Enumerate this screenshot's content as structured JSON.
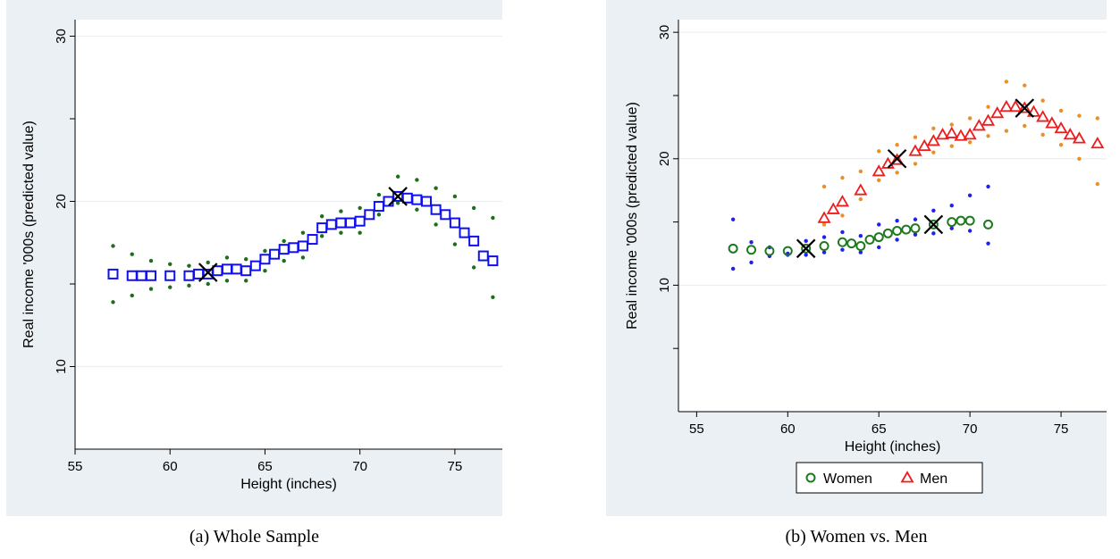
{
  "figure": {
    "caption_a": "(a) Whole Sample",
    "caption_b": "(b) Women vs. Men"
  },
  "colors": {
    "panel_bg": "#eaf0f3",
    "plot_bg": "#ffffff",
    "grid": "#eaf0f3",
    "whole_fit": "#1010ee",
    "whole_ci": "#1e6e1e",
    "women_fit": "#1e7a1e",
    "women_ci": "#1f1fee",
    "men_fit": "#ee1c1c",
    "men_ci": "#e8902a",
    "cross": "#000000"
  },
  "chart_data": [
    {
      "type": "scatter",
      "xlabel": "Height (inches)",
      "ylabel": "Real income '000s (predicted value)",
      "xlim": [
        55,
        77.5
      ],
      "ylim": [
        5,
        31
      ],
      "xticks": [
        55,
        60,
        65,
        70,
        75
      ],
      "yticks": [
        10,
        20,
        30
      ],
      "y_minor_ticks": [
        15,
        25
      ],
      "grid": true,
      "legend": null,
      "series": [
        {
          "marker": "square",
          "color": "#1010ee",
          "x": [
            57,
            58,
            58.5,
            59,
            60,
            61,
            61.5,
            62,
            62.5,
            63,
            63.5,
            64,
            64.5,
            65,
            65.5,
            66,
            66.5,
            67,
            67.5,
            68,
            68.5,
            69,
            69.5,
            70,
            70.5,
            71,
            71.5,
            72,
            72.5,
            73,
            73.5,
            74,
            74.5,
            75,
            75.5,
            76,
            76.5,
            77
          ],
          "y": [
            15.6,
            15.5,
            15.5,
            15.5,
            15.5,
            15.5,
            15.6,
            15.6,
            15.8,
            15.9,
            15.9,
            15.8,
            16.1,
            16.5,
            16.8,
            17.1,
            17.2,
            17.3,
            17.7,
            18.4,
            18.6,
            18.7,
            18.7,
            18.8,
            19.2,
            19.7,
            20.0,
            20.3,
            20.2,
            20.1,
            20.0,
            19.5,
            19.2,
            18.7,
            18.1,
            17.6,
            16.7,
            16.4
          ]
        },
        {
          "marker": "dot",
          "color": "#1e6e1e",
          "x": [
            57,
            58,
            59,
            60,
            61,
            62,
            63,
            64,
            65,
            66,
            67,
            68,
            69,
            70,
            71,
            72,
            73,
            74,
            75,
            76,
            77
          ],
          "y": [
            17.3,
            16.8,
            16.4,
            16.2,
            16.1,
            16.3,
            16.6,
            16.5,
            17.0,
            17.6,
            18.1,
            19.1,
            19.4,
            19.6,
            20.4,
            21.5,
            21.3,
            20.8,
            20.3,
            19.6,
            19.0
          ]
        },
        {
          "marker": "dot",
          "color": "#1e6e1e",
          "x": [
            57,
            58,
            59,
            60,
            61,
            62,
            63,
            64,
            65,
            66,
            67,
            68,
            69,
            70,
            71,
            72,
            73,
            74,
            75,
            76,
            77
          ],
          "y": [
            13.9,
            14.3,
            14.7,
            14.8,
            14.9,
            15.0,
            15.2,
            15.2,
            15.8,
            16.4,
            16.6,
            17.9,
            18.1,
            18.1,
            19.2,
            19.9,
            19.5,
            18.6,
            17.4,
            16.0,
            14.2
          ]
        }
      ],
      "markers": [
        {
          "type": "cross",
          "x": 62,
          "y": 15.7
        },
        {
          "type": "cross",
          "x": 72,
          "y": 20.3
        }
      ]
    },
    {
      "type": "scatter",
      "xlabel": "Height (inches)",
      "ylabel": "Real income '000s (predicted value)",
      "xlim": [
        54,
        77.5
      ],
      "ylim": [
        0,
        31
      ],
      "xticks": [
        55,
        60,
        65,
        70,
        75
      ],
      "yticks": [
        10,
        20,
        30
      ],
      "y_minor_ticks": [
        5,
        15,
        25
      ],
      "grid": true,
      "legend": "bottom",
      "series": [
        {
          "name": "Women",
          "marker": "circle",
          "color": "#1e7a1e",
          "x": [
            57,
            58,
            59,
            60,
            61,
            62,
            63,
            63.5,
            64,
            64.5,
            65,
            65.5,
            66,
            66.5,
            67,
            68,
            69,
            69.5,
            70,
            71
          ],
          "y": [
            12.9,
            12.8,
            12.7,
            12.7,
            12.9,
            13.1,
            13.4,
            13.3,
            13.1,
            13.6,
            13.8,
            14.1,
            14.3,
            14.4,
            14.5,
            14.8,
            15.0,
            15.1,
            15.1,
            14.8
          ]
        },
        {
          "name": "Men",
          "marker": "triangle",
          "color": "#ee1c1c",
          "x": [
            62,
            62.5,
            63,
            64,
            65,
            65.5,
            66,
            67,
            67.5,
            68,
            68.5,
            69,
            69.5,
            70,
            70.5,
            71,
            71.5,
            72,
            72.5,
            73,
            73.5,
            74,
            74.5,
            75,
            75.5,
            76,
            77
          ],
          "y": [
            15.3,
            16.0,
            16.6,
            17.5,
            19.0,
            19.6,
            19.9,
            20.6,
            21.0,
            21.4,
            21.9,
            22.0,
            21.8,
            21.9,
            22.6,
            23.0,
            23.6,
            24.1,
            24.1,
            24.0,
            23.7,
            23.3,
            22.8,
            22.4,
            21.9,
            21.6,
            21.2
          ]
        },
        {
          "marker": "dot",
          "color": "#1f1fee",
          "x": [
            57,
            58,
            59,
            60,
            61,
            62,
            63,
            64,
            65,
            66,
            67,
            68,
            69,
            70,
            71
          ],
          "y": [
            15.2,
            13.4,
            13.0,
            12.5,
            13.5,
            13.8,
            14.2,
            13.9,
            14.8,
            15.1,
            15.2,
            15.9,
            16.3,
            17.1,
            17.8
          ]
        },
        {
          "marker": "dot",
          "color": "#1f1fee",
          "x": [
            57,
            58,
            59,
            60,
            61,
            62,
            63,
            64,
            65,
            66,
            67,
            68,
            69,
            70,
            71
          ],
          "y": [
            11.3,
            11.8,
            12.3,
            12.4,
            12.4,
            12.6,
            12.8,
            12.6,
            13.0,
            13.6,
            14.0,
            14.1,
            14.5,
            14.3,
            13.3
          ]
        },
        {
          "marker": "dot",
          "color": "#e8902a",
          "x": [
            62,
            63,
            64,
            65,
            66,
            67,
            68,
            69,
            70,
            71,
            72,
            73,
            74,
            75,
            76,
            77
          ],
          "y": [
            17.8,
            18.5,
            19.0,
            20.6,
            21.1,
            21.7,
            22.4,
            22.7,
            23.2,
            24.1,
            26.1,
            25.8,
            24.6,
            23.8,
            23.4,
            23.2
          ]
        },
        {
          "marker": "dot",
          "color": "#e8902a",
          "x": [
            62,
            63,
            64,
            65,
            66,
            67,
            68,
            69,
            70,
            71,
            72,
            73,
            74,
            75,
            76,
            77
          ],
          "y": [
            14.8,
            15.5,
            16.8,
            18.3,
            18.9,
            19.6,
            20.5,
            21.0,
            21.3,
            21.8,
            22.2,
            22.6,
            21.9,
            21.1,
            20.0,
            18.0
          ]
        }
      ],
      "markers": [
        {
          "type": "cross",
          "x": 61,
          "y": 12.9
        },
        {
          "type": "cross",
          "x": 68,
          "y": 14.8
        },
        {
          "type": "cross",
          "x": 66,
          "y": 20.0
        },
        {
          "type": "cross",
          "x": 73,
          "y": 24.0
        }
      ]
    }
  ]
}
